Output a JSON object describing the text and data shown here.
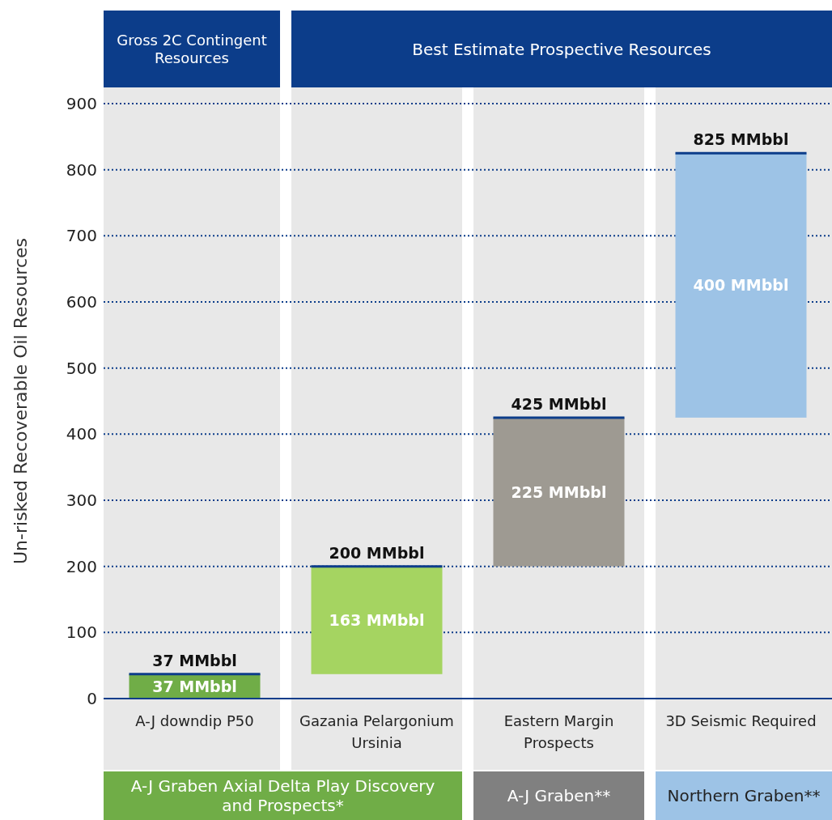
{
  "chart_data": {
    "type": "bar",
    "ylabel": "Un-risked Recoverable Oil Resources",
    "categories": [
      "A-J downdip P50",
      "Gazania Pelargonium Ursinia",
      "Eastern Margin Prospects",
      "3D Seismic Required"
    ],
    "base": [
      0,
      37,
      200,
      425
    ],
    "values": [
      37,
      163,
      225,
      400
    ],
    "colors": [
      "#70ad47",
      "#a5d461",
      "#9e9a92",
      "#9dc3e6"
    ],
    "value_labels": [
      "37 MMbbl",
      "163 MMbbl",
      "225 MMbbl",
      "400 MMbbl"
    ],
    "ylim": [
      0,
      900
    ],
    "yticks": [
      0,
      100,
      200,
      300,
      400,
      500,
      600,
      700,
      800,
      900
    ],
    "grid": "y",
    "annotations": [
      "Gross 2C Contingent Resources",
      "Best Estimate Prospective Resources",
      "A-J Graben Axial Delta Play Discovery and Prospects*",
      "A-J Graben**",
      "Northern Graben**",
      {
        "text": "37 MMbbl",
        "x": "A-J downdip P50",
        "y": 37
      },
      {
        "text": "200 MMbbl",
        "x": "Gazania Pelargonium Ursinia",
        "y": 200
      },
      {
        "text": "425 MMbbl",
        "x": "Eastern Margin Prospects",
        "y": 425
      },
      {
        "text": "825 MMbbl",
        "x": "3D Seismic Required",
        "y": 825
      }
    ]
  }
}
